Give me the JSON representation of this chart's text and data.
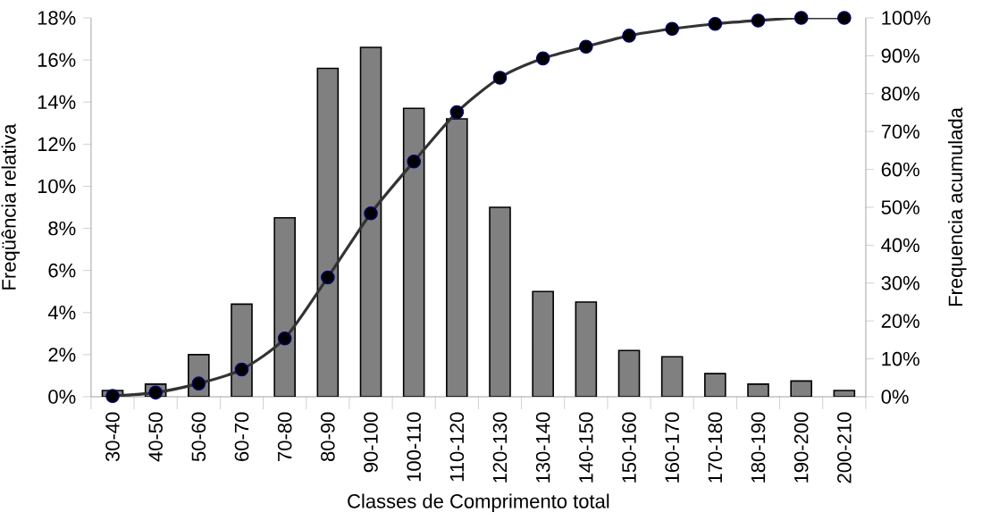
{
  "chart_data": {
    "type": "bar",
    "xlabel": "Classes de Comprimento total",
    "ylabel": "Freqüência relativa",
    "y2label": "Frequencia acumulada",
    "categories": [
      "30-40",
      "40-50",
      "50-60",
      "60-70",
      "70-80",
      "80-90",
      "90-100",
      "100-110",
      "110-120",
      "120-130",
      "130-140",
      "140-150",
      "150-160",
      "160-170",
      "170-180",
      "180-190",
      "190-200",
      "200-210"
    ],
    "series": [
      {
        "color": "#808080",
        "values": [
          0.3,
          0.6,
          2.0,
          4.4,
          8.5,
          15.6,
          16.6,
          13.7,
          13.2,
          9.0,
          5.0,
          4.5,
          2.2,
          1.9,
          1.1,
          0.6,
          0.75,
          0.3
        ]
      },
      {
        "type": "line",
        "axis": "y2",
        "color": "#333333",
        "marker": "circle",
        "values": [
          0.2,
          1.1,
          3.5,
          7.2,
          15.4,
          31.5,
          48.4,
          62.1,
          75.1,
          84.2,
          89.3,
          92.4,
          95.3,
          97.1,
          98.4,
          99.3,
          100,
          100
        ]
      }
    ],
    "ylim": [
      0,
      18
    ],
    "yticks": [
      {
        "value": 0,
        "label": "0%"
      },
      {
        "value": 2,
        "label": "2%"
      },
      {
        "value": 4,
        "label": "4%"
      },
      {
        "value": 6,
        "label": "6%"
      },
      {
        "value": 8,
        "label": "8%"
      },
      {
        "value": 10,
        "label": "10%"
      },
      {
        "value": 12,
        "label": "12%"
      },
      {
        "value": 14,
        "label": "14%"
      },
      {
        "value": 16,
        "label": "16%"
      },
      {
        "value": 18,
        "label": "18%"
      }
    ],
    "y2lim": [
      0,
      100
    ],
    "y2ticks": [
      {
        "value": 0,
        "label": "0%"
      },
      {
        "value": 10,
        "label": "10%"
      },
      {
        "value": 20,
        "label": "20%"
      },
      {
        "value": 30,
        "label": "30%"
      },
      {
        "value": 40,
        "label": "40%"
      },
      {
        "value": 50,
        "label": "50%"
      },
      {
        "value": 60,
        "label": "60%"
      },
      {
        "value": 70,
        "label": "70%"
      },
      {
        "value": 80,
        "label": "80%"
      },
      {
        "value": 90,
        "label": "90%"
      },
      {
        "value": 100,
        "label": "100%"
      }
    ],
    "grid": false
  }
}
